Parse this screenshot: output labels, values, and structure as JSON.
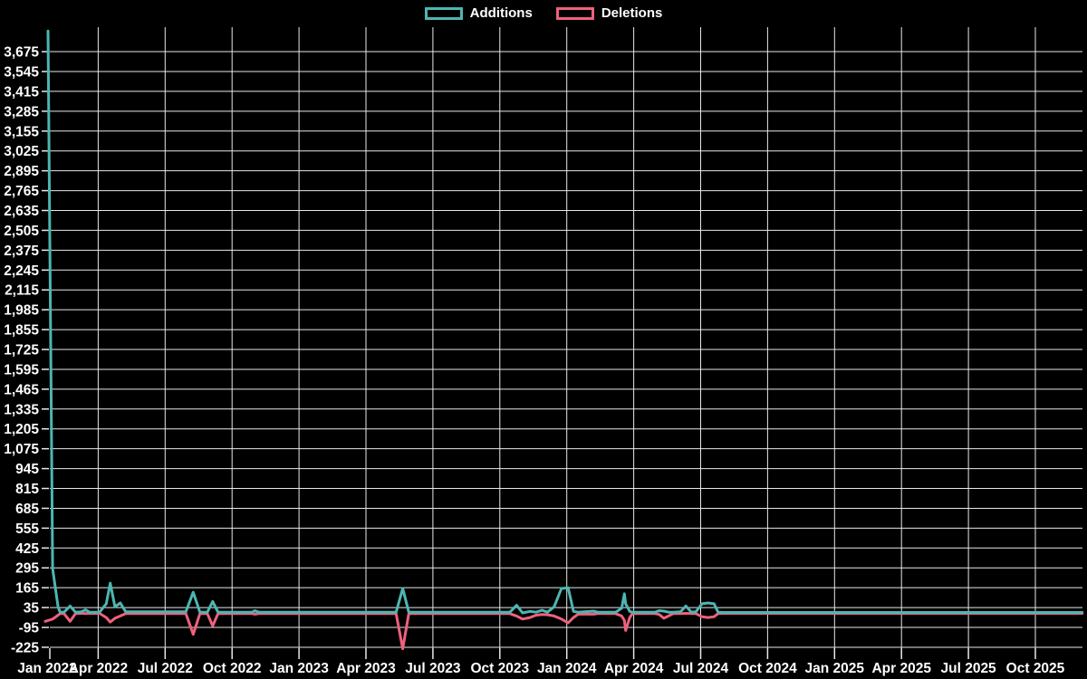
{
  "colors": {
    "background": "#000000",
    "grid": "#e8e8e8",
    "text": "#ffffff",
    "additions": "#4db6b2",
    "deletions": "#ee617d"
  },
  "legend": {
    "additions_label": "Additions",
    "deletions_label": "Deletions"
  },
  "chart_data": {
    "type": "line",
    "title": "",
    "xlabel": "",
    "ylabel": "",
    "legend_position": "top-center",
    "grid": true,
    "x_axis": {
      "unit": "quarters since Jan 2022",
      "tick_labels": [
        "Jan 2022",
        "Apr 2022",
        "Jul 2022",
        "Oct 2022",
        "Jan 2023",
        "Apr 2023",
        "Jul 2023",
        "Oct 2023",
        "Jan 2024",
        "Apr 2024",
        "Jul 2024",
        "Oct 2024",
        "Jan 2025",
        "Apr 2025",
        "Jul 2025",
        "Oct 2025"
      ]
    },
    "y_axis": {
      "min": -225,
      "max": 3675,
      "step": 130,
      "tick_labels": [
        "3,675",
        "3,545",
        "3,415",
        "3,285",
        "3,155",
        "3,025",
        "2,895",
        "2,765",
        "2,635",
        "2,505",
        "2,375",
        "2,245",
        "2,115",
        "1,985",
        "1,855",
        "1,725",
        "1,595",
        "1,465",
        "1,335",
        "1,205",
        "1,075",
        "945",
        "815",
        "685",
        "555",
        "425",
        "295",
        "165",
        "35",
        "-95",
        "-225"
      ]
    },
    "series": [
      {
        "name": "Additions",
        "color": "#4db6b2",
        "points": [
          [
            0.25,
            3810
          ],
          [
            0.32,
            290
          ],
          [
            0.4,
            40
          ],
          [
            0.43,
            5
          ],
          [
            0.49,
            5
          ],
          [
            0.58,
            45
          ],
          [
            0.66,
            5
          ],
          [
            0.75,
            8
          ],
          [
            0.81,
            20
          ],
          [
            0.87,
            5
          ],
          [
            1.02,
            5
          ],
          [
            1.12,
            60
          ],
          [
            1.18,
            195
          ],
          [
            1.25,
            40
          ],
          [
            1.33,
            65
          ],
          [
            1.41,
            8
          ],
          [
            2.31,
            8
          ],
          [
            2.42,
            135
          ],
          [
            2.52,
            5
          ],
          [
            2.63,
            5
          ],
          [
            2.71,
            75
          ],
          [
            2.79,
            5
          ],
          [
            3.3,
            5
          ],
          [
            3.34,
            15
          ],
          [
            3.4,
            5
          ],
          [
            5.45,
            5
          ],
          [
            5.55,
            160
          ],
          [
            5.64,
            5
          ],
          [
            7.15,
            5
          ],
          [
            7.25,
            50
          ],
          [
            7.34,
            0
          ],
          [
            7.45,
            10
          ],
          [
            7.54,
            5
          ],
          [
            7.63,
            18
          ],
          [
            7.71,
            5
          ],
          [
            7.81,
            40
          ],
          [
            7.92,
            160
          ],
          [
            8.02,
            165
          ],
          [
            8.1,
            10
          ],
          [
            8.17,
            5
          ],
          [
            8.4,
            12
          ],
          [
            8.46,
            5
          ],
          [
            8.73,
            5
          ],
          [
            8.82,
            30
          ],
          [
            8.86,
            125
          ],
          [
            8.88,
            60
          ],
          [
            8.94,
            10
          ],
          [
            8.98,
            5
          ],
          [
            9.32,
            5
          ],
          [
            9.38,
            15
          ],
          [
            9.45,
            12
          ],
          [
            9.52,
            5
          ],
          [
            9.59,
            5
          ],
          [
            9.7,
            8
          ],
          [
            9.78,
            45
          ],
          [
            9.86,
            5
          ],
          [
            9.93,
            8
          ],
          [
            10.02,
            60
          ],
          [
            10.11,
            65
          ],
          [
            10.2,
            60
          ],
          [
            10.26,
            5
          ],
          [
            10.36,
            3
          ],
          [
            15.7,
            3
          ]
        ]
      },
      {
        "name": "Deletions",
        "color": "#ee617d",
        "points": [
          [
            0.21,
            -55
          ],
          [
            0.32,
            -40
          ],
          [
            0.4,
            -15
          ],
          [
            0.43,
            -5
          ],
          [
            0.49,
            -5
          ],
          [
            0.58,
            -55
          ],
          [
            0.66,
            -5
          ],
          [
            0.75,
            -3
          ],
          [
            0.81,
            -5
          ],
          [
            0.87,
            -3
          ],
          [
            1.02,
            -3
          ],
          [
            1.12,
            -30
          ],
          [
            1.18,
            -60
          ],
          [
            1.25,
            -35
          ],
          [
            1.33,
            -20
          ],
          [
            1.41,
            -5
          ],
          [
            2.31,
            -5
          ],
          [
            2.42,
            -140
          ],
          [
            2.52,
            -5
          ],
          [
            2.63,
            -5
          ],
          [
            2.71,
            -85
          ],
          [
            2.79,
            -5
          ],
          [
            3.3,
            -5
          ],
          [
            3.34,
            -8
          ],
          [
            3.4,
            -5
          ],
          [
            5.45,
            -5
          ],
          [
            5.55,
            -235
          ],
          [
            5.64,
            -5
          ],
          [
            7.15,
            -5
          ],
          [
            7.25,
            -20
          ],
          [
            7.34,
            -40
          ],
          [
            7.45,
            -30
          ],
          [
            7.54,
            -15
          ],
          [
            7.63,
            -10
          ],
          [
            7.71,
            -12
          ],
          [
            7.81,
            -20
          ],
          [
            7.92,
            -40
          ],
          [
            8.02,
            -65
          ],
          [
            8.1,
            -30
          ],
          [
            8.17,
            -8
          ],
          [
            8.4,
            -8
          ],
          [
            8.46,
            -5
          ],
          [
            8.73,
            -5
          ],
          [
            8.82,
            -20
          ],
          [
            8.86,
            -50
          ],
          [
            8.88,
            -115
          ],
          [
            8.94,
            -30
          ],
          [
            8.98,
            -5
          ],
          [
            9.32,
            -5
          ],
          [
            9.38,
            -10
          ],
          [
            9.45,
            -35
          ],
          [
            9.52,
            -20
          ],
          [
            9.59,
            -5
          ],
          [
            9.7,
            -5
          ],
          [
            9.78,
            -3
          ],
          [
            9.86,
            -5
          ],
          [
            9.93,
            -5
          ],
          [
            10.02,
            -25
          ],
          [
            10.11,
            -30
          ],
          [
            10.2,
            -25
          ],
          [
            10.26,
            -5
          ],
          [
            10.36,
            -3
          ],
          [
            15.7,
            -3
          ]
        ]
      }
    ]
  }
}
